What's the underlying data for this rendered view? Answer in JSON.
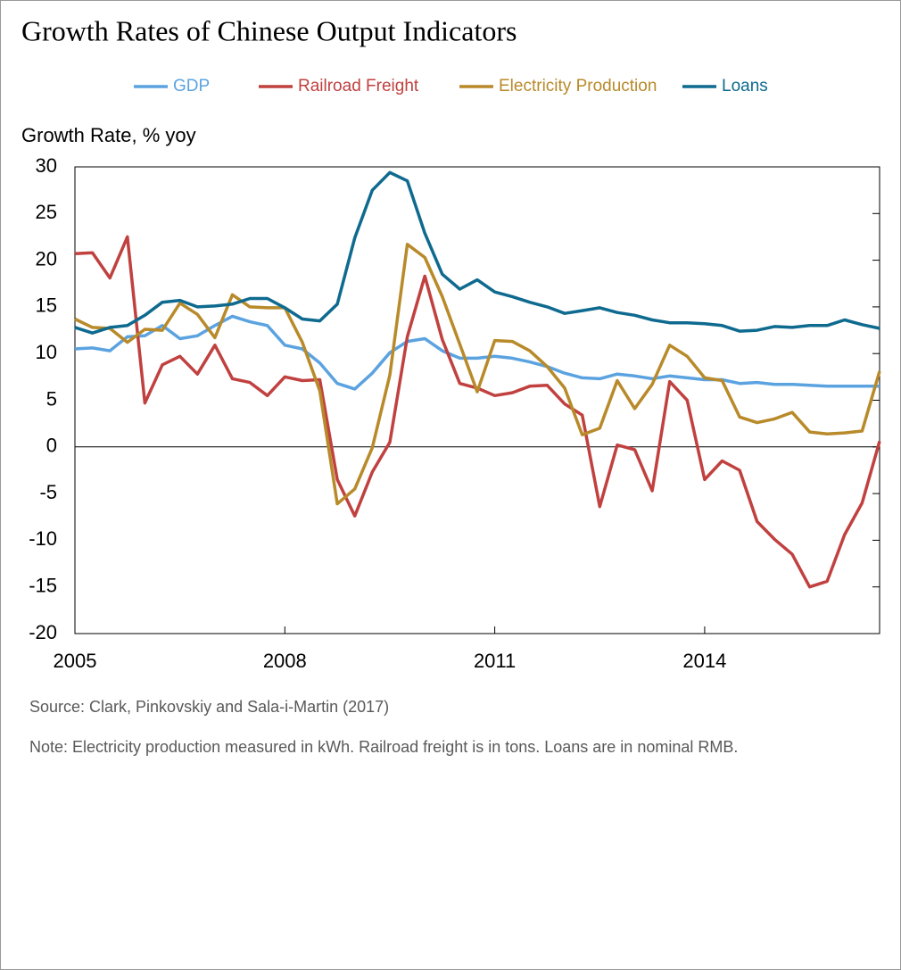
{
  "chart_data": {
    "type": "line",
    "title": "Growth Rates of Chinese Output Indicators",
    "ylabel": "Growth Rate, % yoy",
    "source": "Source:  Clark, Pinkovskiy and Sala-i-Martin (2017)",
    "note": "Note: Electricity production measured in kWh. Railroad freight is in tons. Loans are in nominal RMB.",
    "x": [
      2005,
      2005.25,
      2005.5,
      2005.75,
      2006,
      2006.25,
      2006.5,
      2006.75,
      2007,
      2007.25,
      2007.5,
      2007.75,
      2008,
      2008.25,
      2008.5,
      2008.75,
      2009,
      2009.25,
      2009.5,
      2009.75,
      2010,
      2010.25,
      2010.5,
      2010.75,
      2011,
      2011.25,
      2011.5,
      2011.75,
      2012,
      2012.25,
      2012.5,
      2012.75,
      2013,
      2013.25,
      2013.5,
      2013.75,
      2014,
      2014.25,
      2014.5,
      2014.75,
      2015,
      2015.25,
      2015.5,
      2015.75,
      2016,
      2016.25,
      2016.5
    ],
    "xlim": [
      2005,
      2016.5
    ],
    "xticks": [
      2005,
      2008,
      2011,
      2014
    ],
    "ylim": [
      -20,
      30
    ],
    "yticks": [
      30,
      25,
      20,
      15,
      10,
      5,
      0,
      -5,
      -10,
      -15,
      -20
    ],
    "grid": false,
    "series": [
      {
        "name": "GDP",
        "color": "#5ba3e0",
        "values": [
          10.5,
          10.6,
          10.3,
          11.8,
          11.9,
          13.0,
          11.6,
          11.9,
          13.0,
          14.0,
          13.4,
          13.0,
          10.9,
          10.5,
          9.0,
          6.8,
          6.2,
          7.9,
          10.1,
          11.3,
          11.6,
          10.3,
          9.5,
          9.5,
          9.7,
          9.5,
          9.1,
          8.6,
          7.9,
          7.4,
          7.3,
          7.8,
          7.6,
          7.3,
          7.6,
          7.4,
          7.2,
          7.2,
          6.8,
          6.9,
          6.7,
          6.7,
          6.6,
          6.5,
          6.5,
          6.5,
          6.5
        ]
      },
      {
        "name": "Railroad Freight",
        "color": "#c0413f",
        "values": [
          20.7,
          20.8,
          18.1,
          22.5,
          4.7,
          8.8,
          9.7,
          7.8,
          10.9,
          7.3,
          6.9,
          5.5,
          7.5,
          7.1,
          7.2,
          -3.5,
          -7.4,
          -2.7,
          0.5,
          11.8,
          18.3,
          11.5,
          6.8,
          6.3,
          5.5,
          5.8,
          6.5,
          6.6,
          4.6,
          3.4,
          -6.4,
          0.2,
          -0.3,
          -4.7,
          7.0,
          5.0,
          -3.5,
          -1.5,
          -2.5,
          -8.0,
          -9.9,
          -11.5,
          -15.0,
          -14.4,
          -9.4,
          -6.0,
          0.6
        ]
      },
      {
        "name": "Electricity Production",
        "color": "#b88a2a",
        "values": [
          13.7,
          12.8,
          12.7,
          11.2,
          12.6,
          12.5,
          15.4,
          14.2,
          11.7,
          16.3,
          15.0,
          14.9,
          14.9,
          11.2,
          6.0,
          -6.1,
          -4.5,
          -0.1,
          7.7,
          21.7,
          20.3,
          16.1,
          11.0,
          5.9,
          11.4,
          11.3,
          10.3,
          8.6,
          6.3,
          1.3,
          2.0,
          7.1,
          4.1,
          6.7,
          10.9,
          9.7,
          7.4,
          7.1,
          3.2,
          2.6,
          3.0,
          3.7,
          1.6,
          1.4,
          1.5,
          1.7,
          8.1
        ]
      },
      {
        "name": "Loans",
        "color": "#0e6a8f",
        "values": [
          12.8,
          12.2,
          12.8,
          13.0,
          14.1,
          15.5,
          15.7,
          15.0,
          15.1,
          15.3,
          15.9,
          15.9,
          14.9,
          13.7,
          13.5,
          15.3,
          22.4,
          27.5,
          29.4,
          28.5,
          22.9,
          18.5,
          16.9,
          17.9,
          16.6,
          16.1,
          15.5,
          15.0,
          14.3,
          14.6,
          14.9,
          14.4,
          14.1,
          13.6,
          13.3,
          13.3,
          13.2,
          13.0,
          12.4,
          12.5,
          12.9,
          12.8,
          13.0,
          13.0,
          13.6,
          13.1,
          12.7
        ]
      }
    ]
  }
}
